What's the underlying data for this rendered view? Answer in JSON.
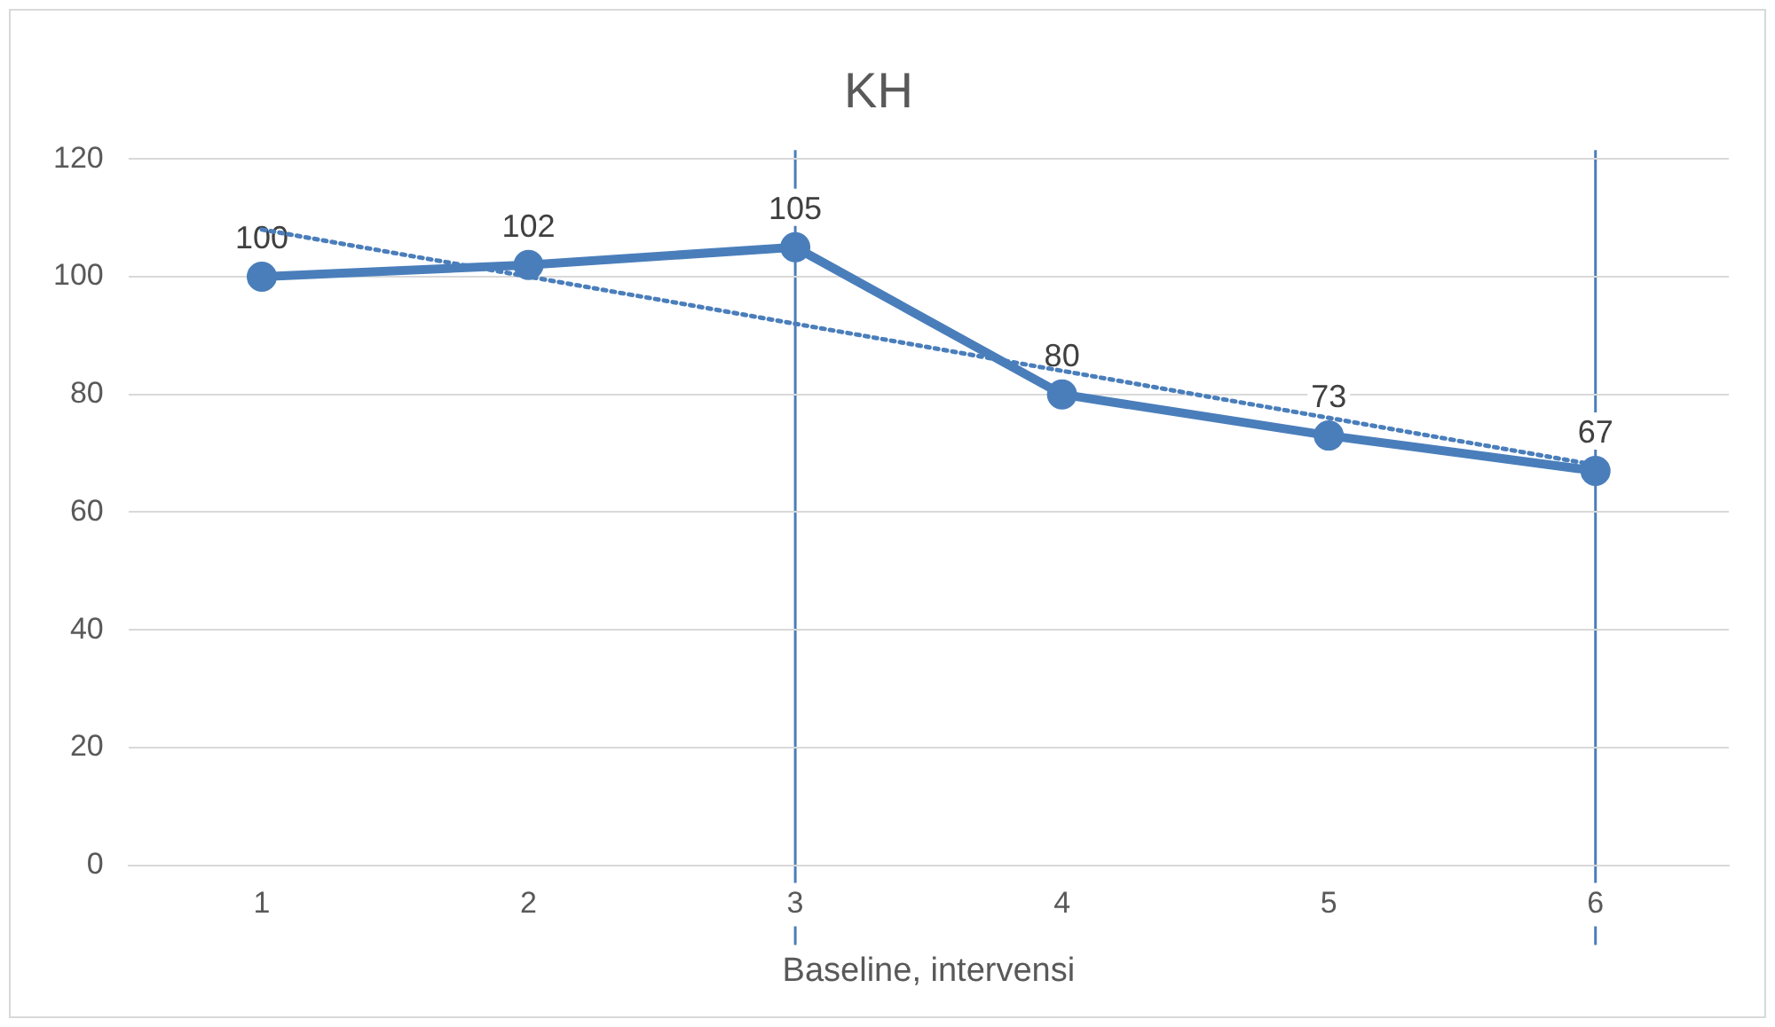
{
  "chart_data": {
    "type": "line",
    "title": "KH",
    "xlabel": "Baseline, intervensi",
    "x": [
      1,
      2,
      3,
      4,
      5,
      6
    ],
    "xlim": [
      0.5,
      6.5
    ],
    "xticks": [
      1,
      2,
      3,
      4,
      5,
      6
    ],
    "ylim": [
      0,
      120
    ],
    "yticks": [
      0,
      20,
      40,
      60,
      80,
      100,
      120
    ],
    "grid": "y",
    "marker": "circle",
    "line_style": "solid",
    "series": [
      {
        "color": "#4a7ebb",
        "values": [
          100,
          102,
          105,
          80,
          73,
          67
        ],
        "value_labels": [
          "100",
          "102",
          "105",
          "80",
          "73",
          "67"
        ]
      },
      {
        "type": "line",
        "color": "#4a7ebb",
        "x": [
          1,
          6
        ],
        "values": [
          108,
          68
        ],
        "line_style": "dotted",
        "marker": "none"
      }
    ],
    "ref_lines": [
      {
        "axis": "x",
        "value": 3,
        "color": "#4a7ebb"
      },
      {
        "axis": "x",
        "value": 6,
        "color": "#4a7ebb"
      }
    ]
  }
}
